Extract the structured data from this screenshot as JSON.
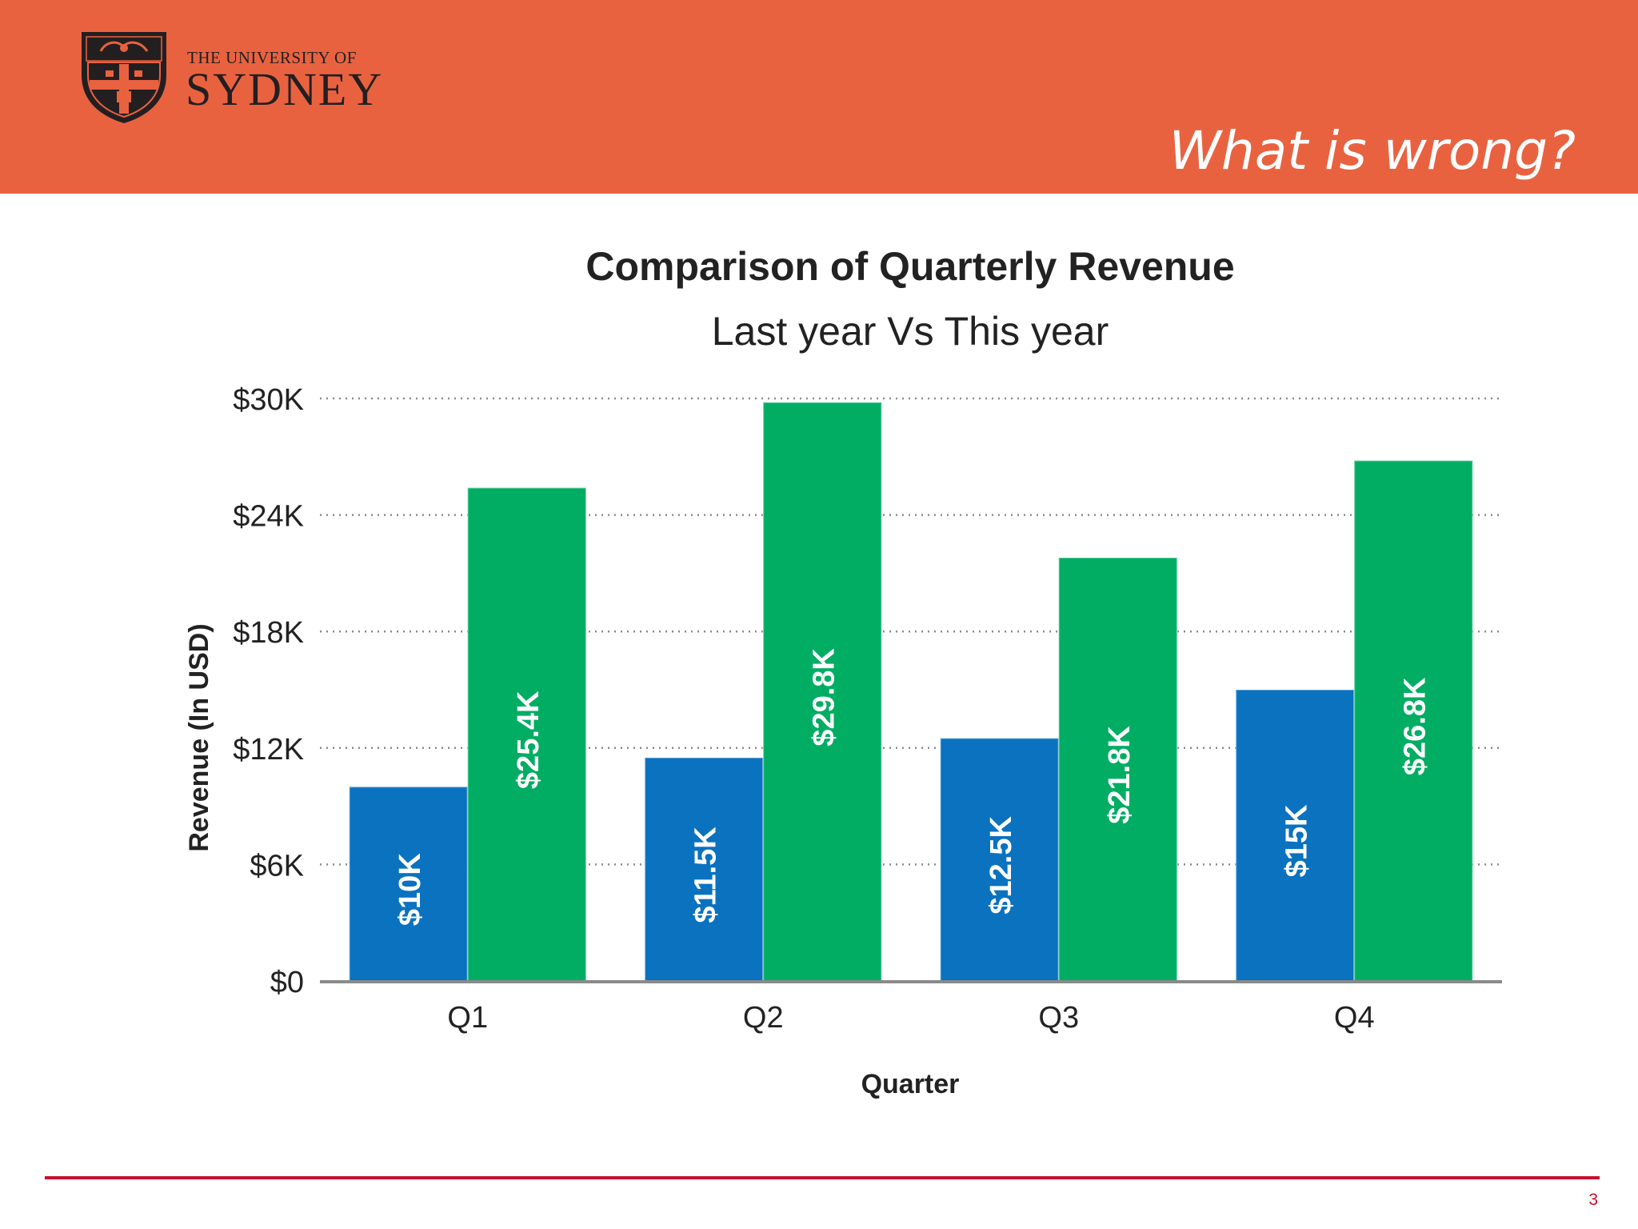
{
  "header": {
    "logo_line1": "THE UNIVERSITY OF",
    "logo_line2": "SYDNEY",
    "title": "What is wrong?",
    "accent_color": "#e96240"
  },
  "footer": {
    "page_number": "3",
    "rule_color": "#c8102e"
  },
  "chart_data": {
    "type": "bar",
    "title": "Comparison of Quarterly Revenue",
    "subtitle": "Last year Vs This year",
    "xlabel": "Quarter",
    "ylabel": "Revenue (In USD)",
    "categories": [
      "Q1",
      "Q2",
      "Q3",
      "Q4"
    ],
    "ylim": [
      0,
      30000
    ],
    "yticks": [
      0,
      6000,
      12000,
      18000,
      24000,
      30000
    ],
    "ytick_labels": [
      "$0",
      "$6K",
      "$12K",
      "$18K",
      "$24K",
      "$30K"
    ],
    "grid": "horizontal-dotted",
    "legend": "none",
    "series": [
      {
        "color": "#0a72bf",
        "values": [
          10000,
          11500,
          12500,
          15000
        ],
        "labels": [
          "$10K",
          "$11.5K",
          "$12.5K",
          "$15K"
        ]
      },
      {
        "color": "#00ad63",
        "values": [
          25400,
          29800,
          21800,
          26800
        ],
        "labels": [
          "$25.4K",
          "$29.8K",
          "$21.8K",
          "$26.8K"
        ]
      }
    ]
  }
}
